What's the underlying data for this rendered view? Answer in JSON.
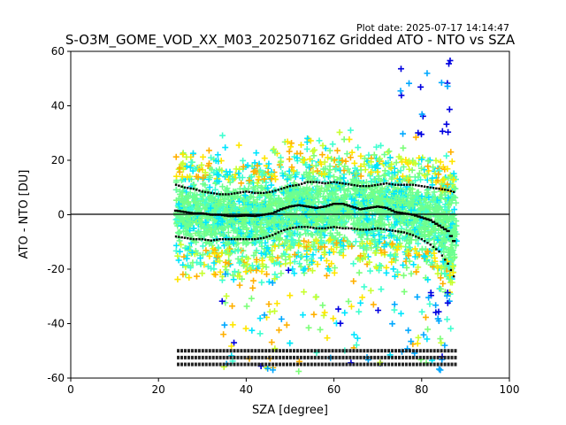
{
  "plot_date": "Plot date: 2025-07-17 14:14:47",
  "title": "S-O3M_GOME_VOD_XX_M03_20250716Z Gridded ATO - NTO vs SZA",
  "xlabel": "SZA [degree]",
  "ylabel": "ATO - NTO [DU]",
  "colors": {
    "scatter_palette": [
      "#00e5ff",
      "#40ffd0",
      "#7dff7a",
      "#c8ff30",
      "#ffe600",
      "#ffb000",
      "#00a8ff",
      "#0000e0"
    ],
    "dominant": "#6dff90",
    "mean_line": "#000000",
    "zero_line": "#000000"
  },
  "chart_data": {
    "type": "scatter",
    "title": "S-O3M_GOME_VOD_XX_M03_20250716Z Gridded ATO - NTO vs SZA",
    "xlabel": "SZA [degree]",
    "ylabel": "ATO - NTO [DU]",
    "xlim": [
      0,
      100
    ],
    "ylim": [
      -60,
      60
    ],
    "xticks": [
      "0",
      "20",
      "40",
      "60",
      "80",
      "100"
    ],
    "yticks": [
      "60",
      "40",
      "20",
      "0",
      "-20",
      "-40",
      "-60"
    ],
    "zero_line": 0,
    "grid": false,
    "marker": "plus",
    "scatter_extent": {
      "sza_min": 24,
      "sza_max": 88,
      "diff_core": [
        -28,
        30
      ],
      "diff_max": [
        -58,
        60
      ]
    },
    "mean_line": {
      "x": [
        24,
        26,
        28,
        30,
        32,
        34,
        36,
        38,
        40,
        42,
        44,
        46,
        48,
        50,
        52,
        54,
        56,
        58,
        60,
        62,
        64,
        66,
        68,
        70,
        72,
        74,
        76,
        78,
        80,
        82,
        84,
        86,
        88
      ],
      "y": [
        1.5,
        1.0,
        0.5,
        0.5,
        0.0,
        0.0,
        -0.5,
        -0.5,
        -0.3,
        -0.5,
        0.0,
        0.5,
        2.0,
        3.0,
        3.5,
        3.0,
        2.5,
        3.0,
        4.0,
        4.0,
        3.0,
        2.0,
        2.5,
        3.0,
        2.5,
        1.0,
        0.5,
        0.0,
        -1.0,
        -2.0,
        -4.0,
        -6.0,
        -11.5
      ]
    },
    "upper_sigma": {
      "x": [
        24,
        26,
        28,
        30,
        32,
        34,
        36,
        38,
        40,
        42,
        44,
        46,
        48,
        50,
        52,
        54,
        56,
        58,
        60,
        62,
        64,
        66,
        68,
        70,
        72,
        74,
        76,
        78,
        80,
        82,
        84,
        86,
        88
      ],
      "y": [
        11,
        10,
        9.5,
        8.5,
        8,
        7.5,
        7.5,
        8,
        8.5,
        8,
        8,
        8.5,
        9.5,
        10.5,
        11,
        12,
        12,
        11.5,
        12,
        11.5,
        11,
        10.5,
        10.5,
        11,
        11.5,
        11,
        11,
        11,
        10.5,
        10,
        9.5,
        9,
        8
      ]
    },
    "lower_sigma": {
      "x": [
        24,
        26,
        28,
        30,
        32,
        34,
        36,
        38,
        40,
        42,
        44,
        46,
        48,
        50,
        52,
        54,
        56,
        58,
        60,
        62,
        64,
        66,
        68,
        70,
        72,
        74,
        76,
        78,
        80,
        82,
        84,
        86,
        88
      ],
      "y": [
        -8,
        -8.5,
        -9,
        -9,
        -9.5,
        -9,
        -9,
        -9,
        -9,
        -9,
        -8.5,
        -7.5,
        -6,
        -5,
        -4.5,
        -4.5,
        -5,
        -5,
        -4.5,
        -5,
        -5,
        -5.5,
        -5.5,
        -5,
        -5.5,
        -6,
        -6.5,
        -7.5,
        -9,
        -11,
        -13.5,
        -18,
        -25
      ]
    },
    "annotation_rows_y": [
      -50.3,
      -52.8,
      -55.3
    ]
  }
}
